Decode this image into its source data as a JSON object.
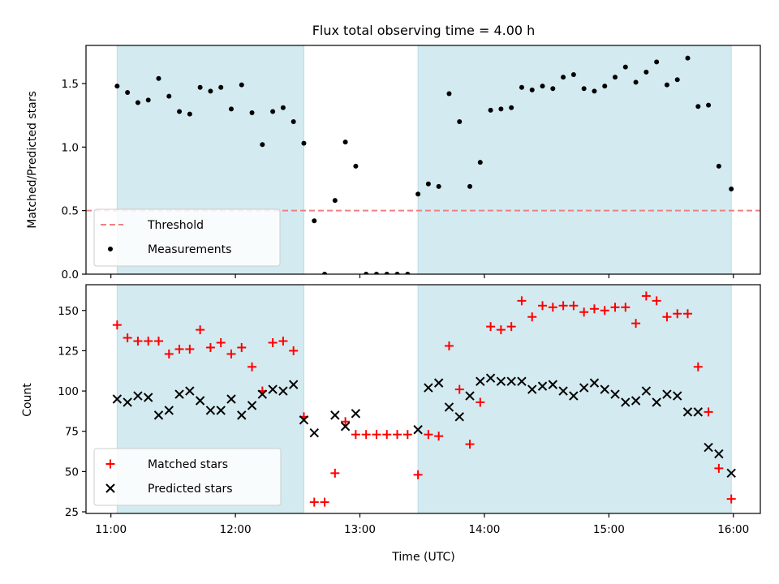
{
  "chart_data": [
    {
      "type": "scatter",
      "title": "Flux total observing time = 4.00 h",
      "xlabel": "",
      "ylabel": "Matched/Predicted stars",
      "ylim": [
        0,
        1.8
      ],
      "yticks": [
        0.0,
        0.5,
        1.0,
        1.5
      ],
      "ytick_labels": [
        "0.0",
        "0.5",
        "1.0",
        "1.5"
      ],
      "legend": {
        "placement": "lower-left",
        "entries": [
          "Threshold",
          "Measurements"
        ]
      },
      "threshold": {
        "name": "Threshold",
        "value": 0.5,
        "color": "#f08080"
      },
      "shaded_regions": [
        [
          "11:03",
          "12:33"
        ],
        [
          "13:28",
          "15:59"
        ]
      ],
      "shade_color": "#d3eaf0",
      "series": [
        {
          "name": "Measurements",
          "color": "#000000",
          "x": [
            "11:03",
            "11:08",
            "11:13",
            "11:18",
            "11:23",
            "11:28",
            "11:33",
            "11:38",
            "11:43",
            "11:48",
            "11:53",
            "11:58",
            "12:03",
            "12:08",
            "12:13",
            "12:18",
            "12:23",
            "12:28",
            "12:33",
            "12:38",
            "12:43",
            "12:48",
            "12:53",
            "12:58",
            "13:03",
            "13:08",
            "13:13",
            "13:18",
            "13:23",
            "13:28",
            "13:33",
            "13:38",
            "13:43",
            "13:48",
            "13:53",
            "13:58",
            "14:03",
            "14:08",
            "14:13",
            "14:18",
            "14:23",
            "14:28",
            "14:33",
            "14:38",
            "14:43",
            "14:48",
            "14:53",
            "14:58",
            "15:03",
            "15:08",
            "15:13",
            "15:18",
            "15:23",
            "15:28",
            "15:33",
            "15:38",
            "15:43",
            "15:48",
            "15:53",
            "15:59"
          ],
          "y": [
            1.48,
            1.43,
            1.35,
            1.37,
            1.54,
            1.4,
            1.28,
            1.26,
            1.47,
            1.44,
            1.47,
            1.3,
            1.49,
            1.27,
            1.02,
            1.28,
            1.31,
            1.2,
            1.03,
            0.42,
            0.0,
            0.58,
            1.04,
            0.85,
            0.0,
            0.0,
            0.0,
            0.0,
            0.0,
            0.63,
            0.71,
            0.69,
            1.42,
            1.2,
            0.69,
            0.88,
            1.29,
            1.3,
            1.31,
            1.47,
            1.45,
            1.48,
            1.46,
            1.55,
            1.57,
            1.46,
            1.44,
            1.48,
            1.55,
            1.63,
            1.51,
            1.59,
            1.67,
            1.49,
            1.53,
            1.7,
            1.32,
            1.33,
            0.85,
            0.67
          ]
        }
      ]
    },
    {
      "type": "scatter",
      "title": "",
      "xlabel": "Time (UTC)",
      "ylabel": "Count",
      "ylim": [
        24,
        166
      ],
      "yticks": [
        25,
        50,
        75,
        100,
        125,
        150
      ],
      "ytick_labels": [
        "25",
        "50",
        "75",
        "100",
        "125",
        "150"
      ],
      "xlim": [
        "10:48",
        "16:13"
      ],
      "xticks": [
        "11:00",
        "12:00",
        "13:00",
        "14:00",
        "15:00",
        "16:00"
      ],
      "xtick_labels": [
        "11:00",
        "12:00",
        "13:00",
        "14:00",
        "15:00",
        "16:00"
      ],
      "legend": {
        "placement": "lower-left",
        "entries": [
          "Matched stars",
          "Predicted stars"
        ]
      },
      "shaded_regions": [
        [
          "11:03",
          "12:33"
        ],
        [
          "13:28",
          "15:59"
        ]
      ],
      "shade_color": "#d3eaf0",
      "series": [
        {
          "name": "Matched stars",
          "marker": "plus",
          "color": "#ff0000",
          "x": [
            "11:03",
            "11:08",
            "11:13",
            "11:18",
            "11:23",
            "11:28",
            "11:33",
            "11:38",
            "11:43",
            "11:48",
            "11:53",
            "11:58",
            "12:03",
            "12:08",
            "12:13",
            "12:18",
            "12:23",
            "12:28",
            "12:33",
            "12:38",
            "12:43",
            "12:48",
            "12:53",
            "12:58",
            "13:03",
            "13:08",
            "13:13",
            "13:18",
            "13:23",
            "13:28",
            "13:33",
            "13:38",
            "13:43",
            "13:48",
            "13:53",
            "13:58",
            "14:03",
            "14:08",
            "14:13",
            "14:18",
            "14:23",
            "14:28",
            "14:33",
            "14:38",
            "14:43",
            "14:48",
            "14:53",
            "14:58",
            "15:03",
            "15:08",
            "15:13",
            "15:18",
            "15:23",
            "15:28",
            "15:33",
            "15:38",
            "15:43",
            "15:48",
            "15:53",
            "15:59"
          ],
          "y": [
            141,
            133,
            131,
            131,
            131,
            123,
            126,
            126,
            138,
            127,
            130,
            123,
            127,
            115,
            100,
            130,
            131,
            125,
            84,
            31,
            31,
            49,
            81,
            73,
            73,
            73,
            73,
            73,
            73,
            48,
            73,
            72,
            128,
            101,
            67,
            93,
            140,
            138,
            140,
            156,
            146,
            153,
            152,
            153,
            153,
            149,
            151,
            150,
            152,
            152,
            142,
            159,
            156,
            146,
            148,
            148,
            115,
            87,
            52,
            33
          ]
        },
        {
          "name": "Predicted stars",
          "marker": "x",
          "color": "#000000",
          "x": [
            "11:03",
            "11:08",
            "11:13",
            "11:18",
            "11:23",
            "11:28",
            "11:33",
            "11:38",
            "11:43",
            "11:48",
            "11:53",
            "11:58",
            "12:03",
            "12:08",
            "12:13",
            "12:18",
            "12:23",
            "12:28",
            "12:33",
            "12:38",
            "12:48",
            "12:53",
            "12:58",
            "13:28",
            "13:33",
            "13:38",
            "13:43",
            "13:48",
            "13:53",
            "13:58",
            "14:03",
            "14:08",
            "14:13",
            "14:18",
            "14:23",
            "14:28",
            "14:33",
            "14:38",
            "14:43",
            "14:48",
            "14:53",
            "14:58",
            "15:03",
            "15:08",
            "15:13",
            "15:18",
            "15:23",
            "15:28",
            "15:33",
            "15:38",
            "15:43",
            "15:48",
            "15:53",
            "15:59"
          ],
          "y": [
            95,
            93,
            97,
            96,
            85,
            88,
            98,
            100,
            94,
            88,
            88,
            95,
            85,
            91,
            98,
            101,
            100,
            104,
            82,
            74,
            85,
            78,
            86,
            76,
            102,
            105,
            90,
            84,
            97,
            106,
            108,
            106,
            106,
            106,
            101,
            103,
            104,
            100,
            97,
            102,
            105,
            101,
            98,
            93,
            94,
            100,
            93,
            98,
            97,
            87,
            87,
            65,
            61,
            49
          ]
        }
      ]
    }
  ]
}
